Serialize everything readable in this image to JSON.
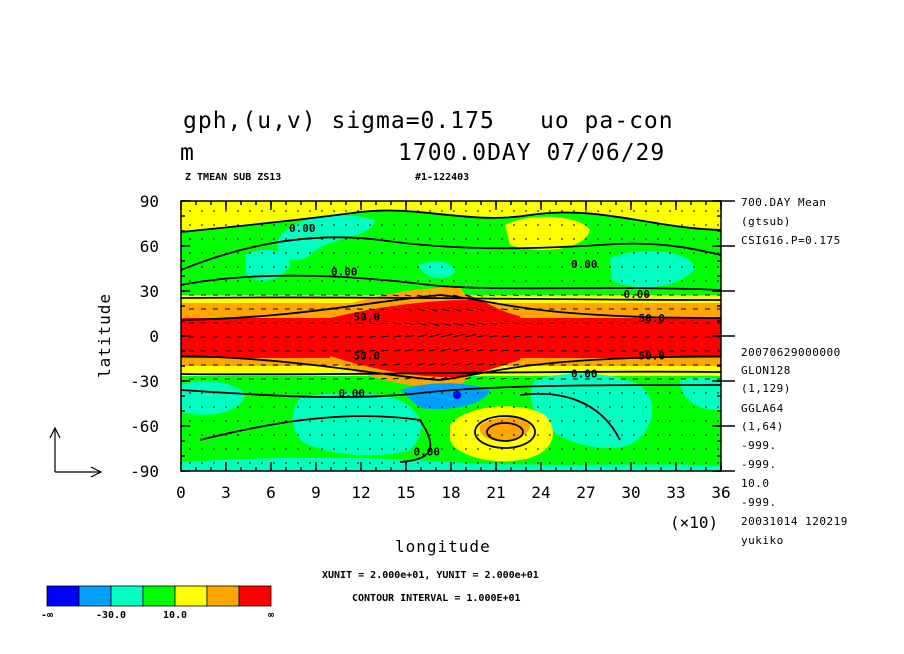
{
  "header": {
    "title_line1_left": "gph,(u,v) sigma=0.175",
    "title_line1_right": "uo pa-con",
    "title_line2_left": "m",
    "title_line2_right": "1700.0DAY 07/06/29",
    "sub_left": "Z TMEAN SUB ZS13",
    "sub_right": "#1-122403"
  },
  "side_info": {
    "top": [
      "700.DAY Mean",
      "(gtsub)",
      "CSIG16.P=0.175"
    ],
    "bottom": [
      "20070629000000",
      "GLON128",
      "(1,129)",
      "GGLA64",
      "(1,64)",
      "-999.",
      "-999.",
      "10.0",
      "-999.",
      "20031014 120219",
      "yukiko"
    ]
  },
  "footer": {
    "units": "XUNIT = 2.000e+01, YUNIT = 2.000e+01",
    "contour_interval": "CONTOUR INTERVAL = 1.000E+01"
  },
  "colorbar": {
    "colors": [
      "#0000ff",
      "#00a0ff",
      "#00ffc0",
      "#00ff00",
      "#ffff00",
      "#ffa500",
      "#ff0000"
    ],
    "labels": [
      "-∞",
      "-30.0",
      "10.0",
      "∞"
    ]
  },
  "chart_data": {
    "type": "heatmap",
    "title": "gph,(u,v) sigma=0.175",
    "xlabel": "longitude",
    "ylabel": "latitude",
    "x_multiplier": "(×10)",
    "xlim": [
      0,
      36
    ],
    "ylim": [
      -90,
      90
    ],
    "xticks": [
      "0",
      "3",
      "6",
      "9",
      "12",
      "15",
      "18",
      "21",
      "24",
      "27",
      "30",
      "33",
      "36"
    ],
    "yticks": [
      "90",
      "60",
      "30",
      "0",
      "-30",
      "-60",
      "-90"
    ],
    "contour_labels": [
      {
        "text": "0.00",
        "x": 7.2,
        "y": 72
      },
      {
        "text": "0.00",
        "x": 10,
        "y": 43
      },
      {
        "text": "0.00",
        "x": 26,
        "y": 48
      },
      {
        "text": "0.00",
        "x": 29.5,
        "y": 28
      },
      {
        "text": "50.0",
        "x": 11.5,
        "y": 13
      },
      {
        "text": "50.0",
        "x": 30.5,
        "y": 12
      },
      {
        "text": "50.0",
        "x": 30.5,
        "y": -13
      },
      {
        "text": "50.0",
        "x": 11.5,
        "y": -13
      },
      {
        "text": "0.00",
        "x": 26,
        "y": -25
      },
      {
        "text": "0.00",
        "x": 10.5,
        "y": -38
      },
      {
        "text": "0.00",
        "x": 15.5,
        "y": -77
      }
    ]
  }
}
